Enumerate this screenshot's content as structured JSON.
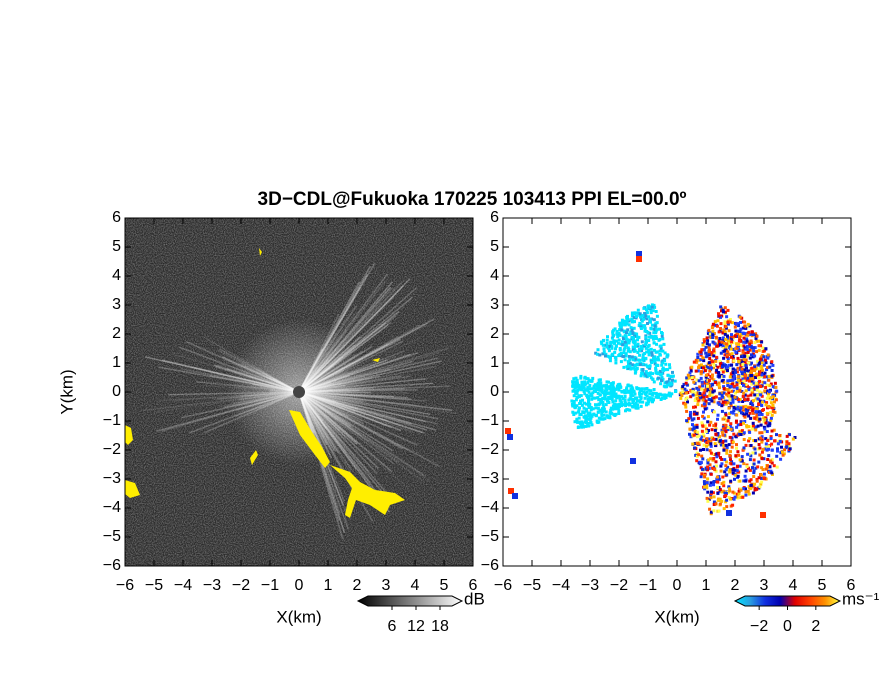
{
  "title": "3D−CDL@Fukuoka 170225 103413 PPI EL=00.0º",
  "chart_data": [
    {
      "type": "image",
      "xlabel": "X(km)",
      "ylabel": "Y(km)",
      "xlim": [
        -6,
        6
      ],
      "ylim": [
        -6,
        6
      ],
      "xticks": [
        {
          "value": -6,
          "label": "−6"
        },
        {
          "value": -5,
          "label": "−5"
        },
        {
          "value": -4,
          "label": "−4"
        },
        {
          "value": -3,
          "label": "−3"
        },
        {
          "value": -2,
          "label": "−2"
        },
        {
          "value": -1,
          "label": "−1"
        },
        0,
        1,
        2,
        3,
        4,
        5,
        6
      ],
      "yticks": [
        {
          "value": -6,
          "label": "−6"
        },
        {
          "value": -5,
          "label": "−5"
        },
        {
          "value": -4,
          "label": "−4"
        },
        {
          "value": -3,
          "label": "−3"
        },
        {
          "value": -2,
          "label": "−2"
        },
        {
          "value": -1,
          "label": "−1"
        },
        0,
        1,
        2,
        3,
        4,
        5,
        6
      ],
      "background": "#2b2b2b",
      "colorbar": {
        "lim": [
          0,
          21
        ],
        "ticks": [
          6,
          12,
          18
        ],
        "unit": "dB",
        "colors": [
          "#000000",
          "#ffffff"
        ]
      }
    },
    {
      "type": "image",
      "xlabel": "X(km)",
      "xlim": [
        -6,
        6
      ],
      "ylim": [
        -6,
        6
      ],
      "xticks": [
        {
          "value": -6,
          "label": "−6"
        },
        {
          "value": -5,
          "label": "−5"
        },
        {
          "value": -4,
          "label": "−4"
        },
        {
          "value": -3,
          "label": "−3"
        },
        {
          "value": -2,
          "label": "−2"
        },
        {
          "value": -1,
          "label": "−1"
        },
        0,
        1,
        2,
        3,
        4,
        5,
        6
      ],
      "yticks": [
        {
          "value": -6,
          "label": "−6"
        },
        {
          "value": -5,
          "label": "−5"
        },
        {
          "value": -4,
          "label": "−4"
        },
        {
          "value": -3,
          "label": "−3"
        },
        {
          "value": -2,
          "label": "−2"
        },
        {
          "value": -1,
          "label": "−1"
        },
        0,
        1,
        2,
        3,
        4,
        5,
        6
      ],
      "background": "#ffffff",
      "colorbar": {
        "lim": [
          -3,
          3
        ],
        "ticks": [
          {
            "value": -2,
            "label": "−2"
          },
          0,
          2
        ],
        "unit": "ms⁻¹",
        "colors": [
          "#00e5ff",
          "#2aa0e0",
          "#1030e0",
          "#0000b0",
          "#e00000",
          "#ff4000",
          "#ff9000",
          "#ffff40"
        ]
      }
    }
  ]
}
